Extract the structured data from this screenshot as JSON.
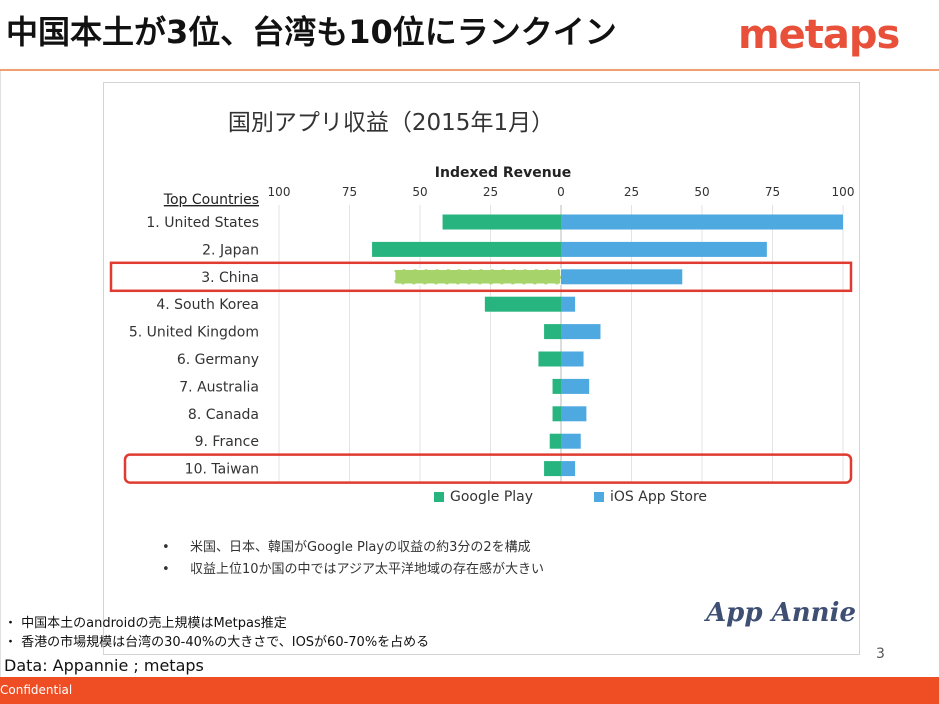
{
  "slide": {
    "title": "中国本土が3位、台湾も10位にランクイン",
    "logo_text": "metaps",
    "page_number": "3",
    "footer_label": "Confidential",
    "notes": [
      "・ 中国本土のandroidの売上規模はMetpas推定",
      "・ 香港の市場規模は台湾の30-40%の大きさで、IOSが60-70%を占める"
    ],
    "source": "Data: Appannie ; metaps"
  },
  "chart_data": {
    "type": "bar",
    "orientation": "horizontal-diverging",
    "title": "国別アプリ収益（2015年1月）",
    "xlabel": "Indexed Revenue",
    "category_header": "Top Countries",
    "xlim_left": [
      100,
      0
    ],
    "xlim_right": [
      0,
      100
    ],
    "ticks": [
      "100",
      "75",
      "50",
      "25",
      "0",
      "25",
      "50",
      "75",
      "100"
    ],
    "tick_values_left": [
      100,
      75,
      50,
      25,
      0
    ],
    "tick_values_right": [
      0,
      25,
      50,
      75,
      100
    ],
    "categories": [
      "1. United States",
      "2. Japan",
      "3. China",
      "4. South Korea",
      "5. United Kingdom",
      "6. Germany",
      "7. Australia",
      "8. Canada",
      "9. France",
      "10. Taiwan"
    ],
    "series": [
      {
        "name": "Google Play",
        "side": "left",
        "color": "#27b47e",
        "values": [
          42,
          67,
          59,
          27,
          6,
          8,
          3,
          3,
          4,
          6
        ]
      },
      {
        "name": "iOS App Store",
        "side": "right",
        "color": "#4ea9e1",
        "values": [
          100,
          73,
          43,
          5,
          14,
          8,
          10,
          9,
          7,
          5
        ]
      }
    ],
    "estimated_color": "#a6d46a",
    "highlight_color": "#e03b30",
    "highlighted_categories": [
      "3. China",
      "10. Taiwan"
    ],
    "grid": true,
    "legend_position": "bottom",
    "bullets": [
      "米国、日本、韓国がGoogle Playの収益の約3分の2を構成",
      "収益上位10か国の中ではアジア太平洋地域の存在感が大きい"
    ],
    "brand": "App Annie"
  }
}
